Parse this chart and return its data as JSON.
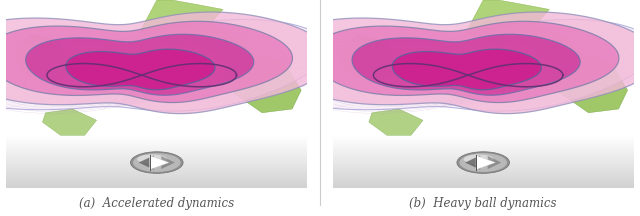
{
  "figsize": [
    6.4,
    2.16
  ],
  "dpi": 100,
  "subfig_labels": [
    "(a)  Accelerated dynamics",
    "(b)  Heavy ball dynamics"
  ],
  "label_fontsize": 8.5,
  "label_color": "#555555"
}
